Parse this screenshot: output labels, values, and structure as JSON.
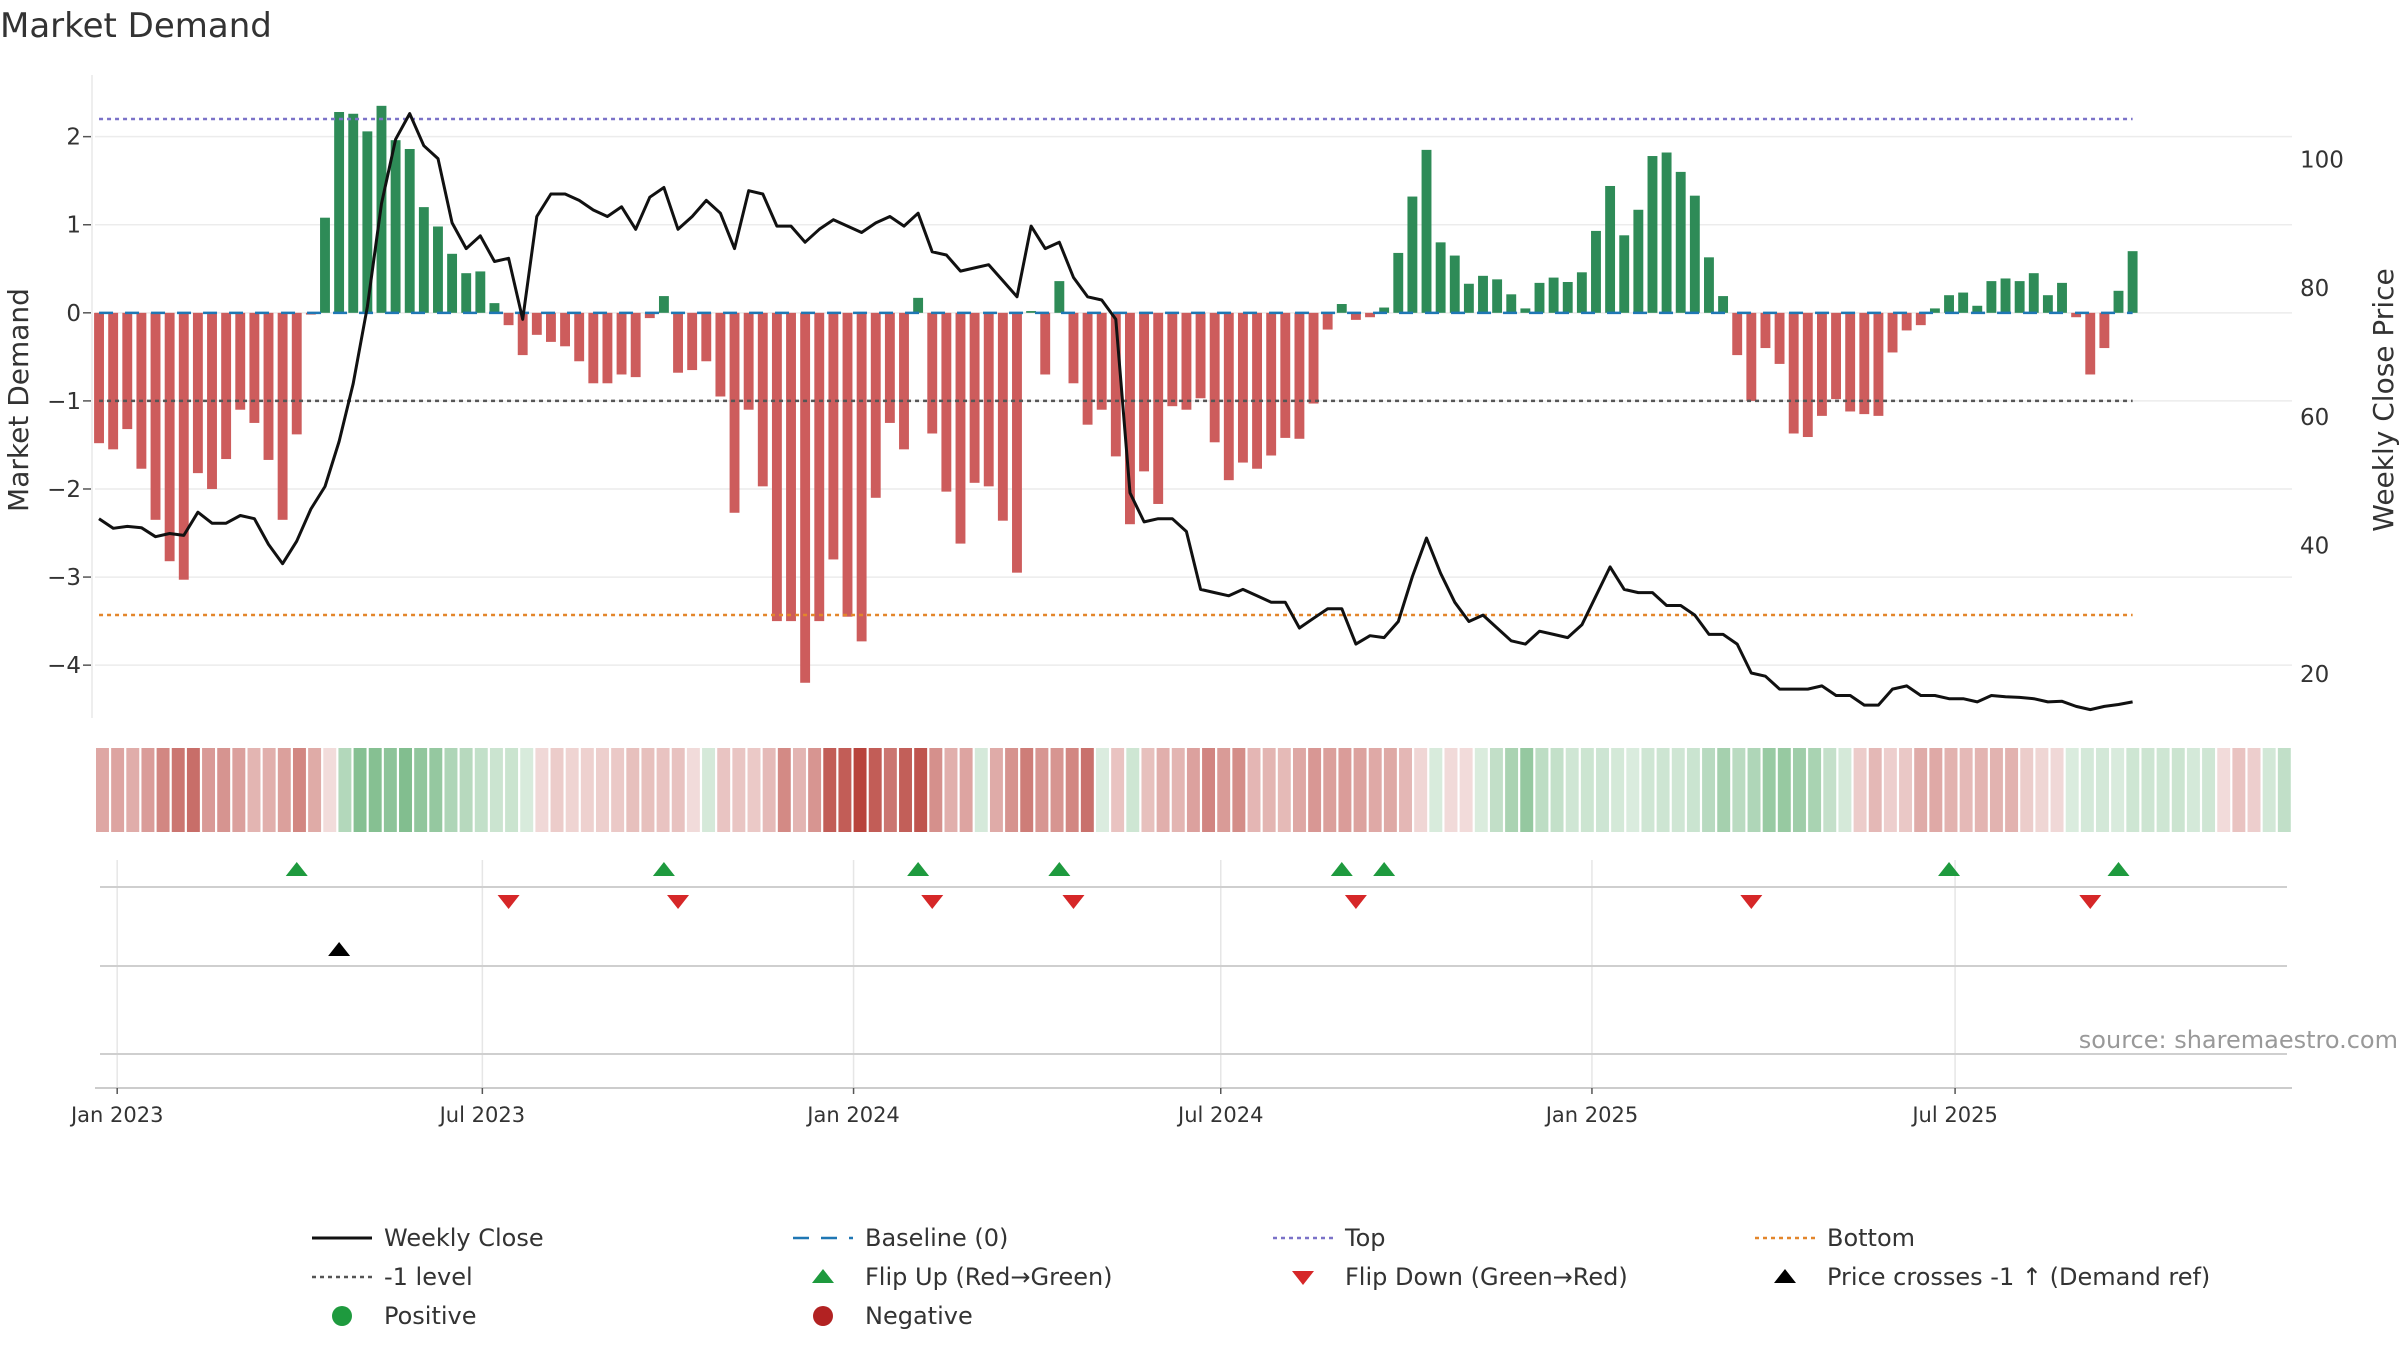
{
  "chart_data": {
    "type": "bar",
    "title": "Market Demand",
    "ylabel": "Market Demand",
    "y2label": "Weekly Close Price",
    "ylim": [
      -4.6,
      2.7
    ],
    "y2lim": [
      13,
      113
    ],
    "yticks": [
      2,
      1,
      0,
      -1,
      -2,
      -3,
      -4
    ],
    "yticklabels": [
      "2",
      "1",
      "0",
      "−1",
      "−2",
      "−3",
      "−4"
    ],
    "y2ticks": [
      100,
      80,
      60,
      40,
      20
    ],
    "y2ticklabels": [
      "100",
      "80",
      "60",
      "40",
      "20"
    ],
    "x_start": "2022-12-23",
    "x_step_days": 7,
    "x_range_days": [
      -2,
      1087
    ],
    "xticks": [
      {
        "day": 9,
        "label": "Jan 2023"
      },
      {
        "day": 190,
        "label": "Jul 2023"
      },
      {
        "day": 374,
        "label": "Jan 2024"
      },
      {
        "day": 556,
        "label": "Jul 2024"
      },
      {
        "day": 740,
        "label": "Jan 2025"
      },
      {
        "day": 920,
        "label": "Jul 2025"
      }
    ],
    "levels": {
      "top": 2.2,
      "bottom": -3.43,
      "minus_one": -1.0,
      "baseline": 0
    },
    "demand": [
      -1.48,
      -1.55,
      -1.32,
      -1.77,
      -2.35,
      -2.82,
      -3.03,
      -1.82,
      -2.0,
      -1.66,
      -1.1,
      -1.25,
      -1.67,
      -2.35,
      -1.38,
      -0.02,
      1.08,
      2.28,
      2.26,
      2.06,
      2.35,
      1.96,
      1.86,
      1.2,
      0.98,
      0.67,
      0.45,
      0.47,
      0.11,
      -0.14,
      -0.48,
      -0.25,
      -0.33,
      -0.38,
      -0.55,
      -0.8,
      -0.8,
      -0.7,
      -0.73,
      -0.06,
      0.19,
      -0.68,
      -0.65,
      -0.55,
      -0.95,
      -2.27,
      -1.1,
      -1.97,
      -3.5,
      -3.5,
      -4.2,
      -3.5,
      -2.8,
      -3.45,
      -3.73,
      -2.1,
      -1.25,
      -1.55,
      0.17,
      -1.37,
      -2.03,
      -2.62,
      -1.93,
      -1.97,
      -2.36,
      -2.95,
      0.02,
      -0.7,
      0.36,
      -0.8,
      -1.27,
      -1.1,
      -1.63,
      -2.4,
      -1.8,
      -2.17,
      -1.06,
      -1.1,
      -0.97,
      -1.47,
      -1.9,
      -1.7,
      -1.77,
      -1.62,
      -1.42,
      -1.43,
      -1.03,
      -0.19,
      0.1,
      -0.08,
      -0.05,
      0.06,
      0.68,
      1.32,
      1.85,
      0.8,
      0.65,
      0.33,
      0.42,
      0.38,
      0.21,
      0.05,
      0.34,
      0.4,
      0.35,
      0.46,
      0.93,
      1.44,
      0.88,
      1.17,
      1.78,
      1.82,
      1.6,
      1.33,
      0.63,
      0.19,
      -0.48,
      -1.0,
      -0.4,
      -0.58,
      -1.37,
      -1.41,
      -1.17,
      -0.98,
      -1.12,
      -1.15,
      -1.17,
      -0.45,
      -0.2,
      -0.14,
      0.05,
      0.2,
      0.23,
      0.08,
      0.36,
      0.39,
      0.36,
      0.45,
      0.2,
      0.34,
      -0.05,
      -0.7,
      -0.4,
      0.25,
      0.7
    ],
    "price": [
      44,
      42.5,
      42.8,
      42.6,
      41.2,
      41.7,
      41.4,
      45,
      43.3,
      43.3,
      44.5,
      44,
      40,
      37,
      40.5,
      45.5,
      49,
      56,
      65,
      77,
      93,
      103,
      107,
      102,
      100,
      90,
      86,
      88,
      84,
      84.5,
      75,
      91,
      94.5,
      94.5,
      93.5,
      92,
      91,
      92.5,
      89,
      94,
      95.5,
      89,
      91,
      93.5,
      91.5,
      86,
      95,
      94.5,
      89.5,
      89.5,
      87,
      89,
      90.5,
      89.5,
      88.5,
      90,
      91,
      89.5,
      91.5,
      85.5,
      85,
      82.5,
      83,
      83.5,
      81,
      78.5,
      89.5,
      86,
      87,
      81.5,
      78.5,
      78,
      75,
      48,
      43.5,
      44,
      44,
      42,
      33,
      32.5,
      32,
      33,
      32,
      31,
      31,
      27,
      28.5,
      30,
      30,
      24.5,
      25.8,
      25.5,
      28,
      35,
      41,
      35.5,
      31,
      28,
      29,
      27,
      25,
      24.5,
      26.5,
      26,
      25.5,
      27.5,
      32,
      36.5,
      33,
      32.5,
      32.5,
      30.5,
      30.5,
      29,
      26,
      26,
      24.5,
      20,
      19.5,
      17.5,
      17.5,
      17.5,
      18,
      16.5,
      16.5,
      15,
      15,
      17.5,
      18,
      16.5,
      16.5,
      16,
      16,
      15.5,
      16.5,
      16.3,
      16.2,
      16,
      15.5,
      15.6,
      14.8,
      14.3,
      14.8,
      15.1,
      15.5
    ],
    "flip_up_weeks": [
      14,
      40,
      58,
      68,
      88,
      91,
      131,
      143
    ],
    "flip_down_weeks": [
      29,
      41,
      59,
      69,
      89,
      117,
      141
    ],
    "cross_week": 17,
    "source": "source: sharemaestro.com",
    "legend": [
      {
        "label": "Weekly Close",
        "style": "line",
        "color": "#111111"
      },
      {
        "label": "Baseline (0)",
        "style": "dash",
        "color": "#1f77b4"
      },
      {
        "label": "Top",
        "style": "dot",
        "color": "#7b72c8"
      },
      {
        "label": "Bottom",
        "style": "dot",
        "color": "#e3862b"
      },
      {
        "label": "-1 level",
        "style": "dot",
        "color": "#555555"
      },
      {
        "label": "Flip Up (Red→Green)",
        "style": "tri-up",
        "color": "#1e9a3e"
      },
      {
        "label": "Flip Down (Green→Red)",
        "style": "tri-down",
        "color": "#d62728"
      },
      {
        "label": "Price crosses -1 ↑ (Demand ref)",
        "style": "tri-up",
        "color": "#000000"
      },
      {
        "label": "Positive",
        "style": "circle",
        "color": "#1e9a3e"
      },
      {
        "label": "Negative",
        "style": "circle",
        "color": "#b22222"
      }
    ],
    "colors": {
      "positive_bar": "#2e8b57",
      "negative_bar": "#cd5c5c",
      "heat_positive": "#3c9a50",
      "heat_negative": "#b8433c",
      "price_line": "#111111",
      "baseline": "#1f77b4",
      "top": "#7b72c8",
      "bottom": "#e3862b",
      "minus_one": "#555555",
      "flip_up": "#1e9a3e",
      "flip_down": "#d62728",
      "cross": "#000000"
    }
  }
}
